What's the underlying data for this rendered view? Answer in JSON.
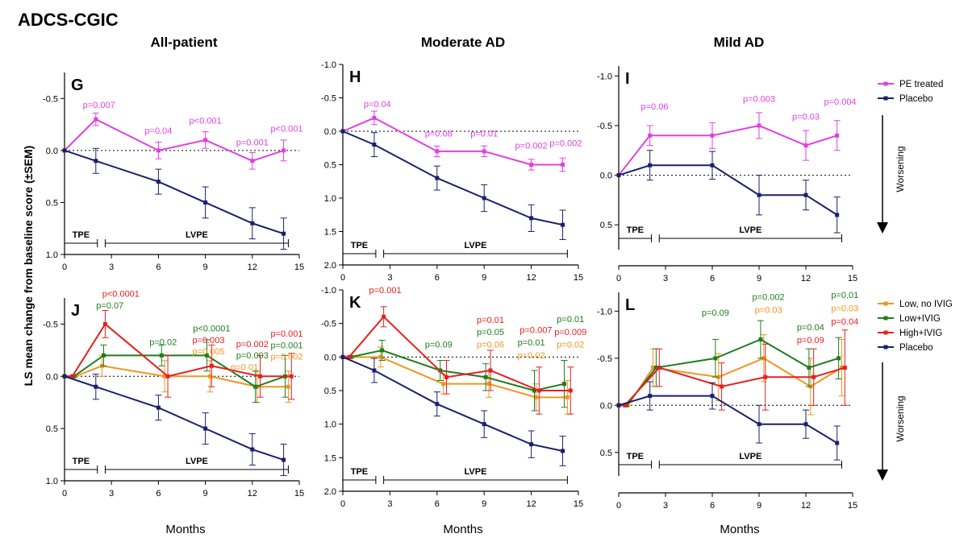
{
  "figure": {
    "title": "ADCS-CGIC",
    "ylabel": "LS mean change from baseline score (±SEM)",
    "xlabel": "Months",
    "col_titles": [
      "All-patient",
      "Moderate AD",
      "Mild AD"
    ],
    "worsening": "Worsening"
  },
  "colors": {
    "pe": "#e040e0",
    "placebo": "#1a1f6e",
    "low_no_ivig": "#f0961e",
    "low_ivig": "#1e7d1e",
    "high_ivig": "#e62020"
  },
  "legends": {
    "top": [
      {
        "label": "PE treated",
        "color": "#e040e0"
      },
      {
        "label": "Placebo",
        "color": "#1a1f6e"
      }
    ],
    "bottom": [
      {
        "label": "Low, no IVIG",
        "color": "#f0961e"
      },
      {
        "label": "Low+IVIG",
        "color": "#1e7d1e"
      },
      {
        "label": "High+IVIG",
        "color": "#e62020"
      },
      {
        "label": "Placebo",
        "color": "#1a1f6e"
      }
    ]
  },
  "chart_data": [
    {
      "panel": "G",
      "type": "line",
      "ylim": [
        1.0,
        -0.75
      ],
      "yticks": [
        -0.5,
        0.0,
        0.5,
        1.0
      ],
      "xlim": [
        0,
        15
      ],
      "xticks": [
        0,
        3,
        6,
        9,
        12,
        15
      ],
      "phases": [
        {
          "label": "TPE",
          "from": 0,
          "to": 2.1
        },
        {
          "label": "LVPE",
          "from": 2.6,
          "to": 14.3
        }
      ],
      "series": [
        {
          "name": "PE treated",
          "color": "#e040e0",
          "x": [
            0,
            2,
            6,
            9,
            12,
            14
          ],
          "y": [
            0,
            -0.3,
            0,
            -0.1,
            0.1,
            0
          ],
          "err": [
            0,
            0.06,
            0.08,
            0.08,
            0.08,
            0.1
          ]
        },
        {
          "name": "Placebo",
          "color": "#1a1f6e",
          "x": [
            0,
            2,
            6,
            9,
            12,
            14
          ],
          "y": [
            0,
            0.1,
            0.3,
            0.5,
            0.7,
            0.8
          ],
          "err": [
            0,
            0.12,
            0.12,
            0.15,
            0.15,
            0.15
          ]
        }
      ],
      "annotations": [
        {
          "text": "p=0.007",
          "x": 2.2,
          "y": -0.41,
          "color": "#e040e0"
        },
        {
          "text": "p=0.04",
          "x": 6.0,
          "y": -0.16,
          "color": "#e040e0"
        },
        {
          "text": "p<0.001",
          "x": 9.0,
          "y": -0.26,
          "color": "#e040e0"
        },
        {
          "text": "p=0.001",
          "x": 12.0,
          "y": -0.05,
          "color": "#e040e0"
        },
        {
          "text": "p<0.001",
          "x": 14.2,
          "y": -0.18,
          "color": "#e040e0"
        }
      ]
    },
    {
      "panel": "H",
      "type": "line",
      "ylim": [
        2.0,
        -1.0
      ],
      "yticks": [
        -1.0,
        -0.5,
        0.0,
        0.5,
        1.0,
        1.5,
        2.0
      ],
      "xlim": [
        0,
        15
      ],
      "xticks": [
        0,
        3,
        6,
        9,
        12,
        15
      ],
      "phases": [
        {
          "label": "TPE",
          "from": 0,
          "to": 2.1
        },
        {
          "label": "LVPE",
          "from": 2.6,
          "to": 14.3
        }
      ],
      "series": [
        {
          "name": "PE treated",
          "color": "#e040e0",
          "x": [
            0,
            2,
            6,
            9,
            12,
            14
          ],
          "y": [
            0,
            -0.2,
            0.3,
            0.3,
            0.5,
            0.5
          ],
          "err": [
            0,
            0.1,
            0.08,
            0.08,
            0.08,
            0.1
          ]
        },
        {
          "name": "Placebo",
          "color": "#1a1f6e",
          "x": [
            0,
            2,
            6,
            9,
            12,
            14
          ],
          "y": [
            0,
            0.2,
            0.7,
            1.0,
            1.3,
            1.4
          ],
          "err": [
            0,
            0.18,
            0.18,
            0.2,
            0.2,
            0.22
          ]
        }
      ],
      "annotations": [
        {
          "text": "p=0.04",
          "x": 2.2,
          "y": -0.36,
          "color": "#e040e0"
        },
        {
          "text": "p=0.08",
          "x": 6.1,
          "y": 0.08,
          "color": "#e040e0"
        },
        {
          "text": "p=0.01",
          "x": 9.0,
          "y": 0.08,
          "color": "#e040e0"
        },
        {
          "text": "p=0.002",
          "x": 12.0,
          "y": 0.26,
          "color": "#e040e0"
        },
        {
          "text": "p=0.002",
          "x": 14.2,
          "y": 0.22,
          "color": "#e040e0"
        }
      ]
    },
    {
      "panel": "I",
      "type": "line",
      "ylim": [
        0.75,
        -1.1
      ],
      "yticks": [
        -1.0,
        -0.5,
        0.0,
        0.5
      ],
      "xlim": [
        0,
        15
      ],
      "xticks": [
        0,
        3,
        6,
        9,
        12,
        15
      ],
      "phases": [
        {
          "label": "TPE",
          "from": 0,
          "to": 2.1
        },
        {
          "label": "LVPE",
          "from": 2.6,
          "to": 14.3
        }
      ],
      "series": [
        {
          "name": "PE treated",
          "color": "#e040e0",
          "x": [
            0,
            2,
            6,
            9,
            12,
            14
          ],
          "y": [
            0,
            -0.4,
            -0.4,
            -0.5,
            -0.3,
            -0.4
          ],
          "err": [
            0,
            0.1,
            0.13,
            0.13,
            0.15,
            0.15
          ]
        },
        {
          "name": "Placebo",
          "color": "#1a1f6e",
          "x": [
            0,
            2,
            6,
            9,
            12,
            14
          ],
          "y": [
            0,
            -0.1,
            -0.1,
            0.2,
            0.2,
            0.4
          ],
          "err": [
            0,
            0.15,
            0.14,
            0.2,
            0.15,
            0.18
          ]
        }
      ],
      "annotations": [
        {
          "text": "p=0.06",
          "x": 2.3,
          "y": -0.66,
          "color": "#e040e0"
        },
        {
          "text": "p=0.003",
          "x": 9.0,
          "y": -0.74,
          "color": "#e040e0"
        },
        {
          "text": "p=0.03",
          "x": 12.0,
          "y": -0.56,
          "color": "#e040e0"
        },
        {
          "text": "p=0.004",
          "x": 14.2,
          "y": -0.71,
          "color": "#e040e0"
        }
      ]
    },
    {
      "panel": "J",
      "type": "line",
      "ylim": [
        1.0,
        -0.75
      ],
      "yticks": [
        -0.5,
        0.0,
        0.5,
        1.0
      ],
      "xlim": [
        0,
        15
      ],
      "xticks": [
        0,
        3,
        6,
        9,
        12,
        15
      ],
      "phases": [
        {
          "label": "TPE",
          "from": 0,
          "to": 2.1
        },
        {
          "label": "LVPE",
          "from": 2.6,
          "to": 14.3
        }
      ],
      "series": [
        {
          "name": "Low, no IVIG",
          "color": "#f0961e",
          "x": [
            0,
            0.7,
            2.4,
            6.4,
            9.3,
            12.3,
            14.3
          ],
          "y": [
            0,
            0,
            -0.1,
            0,
            0,
            0.1,
            0.1
          ],
          "err": [
            0,
            0,
            0.1,
            0.15,
            0.15,
            0.15,
            0.15
          ]
        },
        {
          "name": "Low+IVIG",
          "color": "#1e7d1e",
          "x": [
            0,
            0.6,
            2.5,
            6.2,
            9.1,
            12.2,
            14.1
          ],
          "y": [
            0,
            0,
            -0.2,
            -0.2,
            -0.2,
            0.1,
            0
          ],
          "err": [
            0,
            0,
            0.1,
            0.1,
            0.15,
            0.15,
            0.2
          ]
        },
        {
          "name": "High+IVIG",
          "color": "#e62020",
          "x": [
            0,
            0.5,
            2.6,
            6.6,
            9.4,
            12.5,
            14.5
          ],
          "y": [
            0,
            0,
            -0.5,
            0,
            -0.1,
            0,
            0
          ],
          "err": [
            0,
            0,
            0.13,
            0.2,
            0.2,
            0.2,
            0.22
          ]
        },
        {
          "name": "Placebo",
          "color": "#1a1f6e",
          "x": [
            0,
            2,
            6,
            9,
            12,
            14
          ],
          "y": [
            0,
            0.1,
            0.3,
            0.5,
            0.7,
            0.8
          ],
          "err": [
            0,
            0.12,
            0.12,
            0.15,
            0.15,
            0.15
          ]
        }
      ],
      "annotations": [
        {
          "text": "p<0.0001",
          "x": 3.6,
          "y": -0.76,
          "color": "#e62020"
        },
        {
          "text": "p=0.07",
          "x": 2.9,
          "y": -0.65,
          "color": "#1e7d1e"
        },
        {
          "text": "p=0.02",
          "x": 6.3,
          "y": -0.3,
          "color": "#1e7d1e"
        },
        {
          "text": "p<0.0001",
          "x": 9.4,
          "y": -0.43,
          "color": "#1e7d1e"
        },
        {
          "text": "p=0.003",
          "x": 9.2,
          "y": -0.32,
          "color": "#e62020"
        },
        {
          "text": "p=0.005",
          "x": 9.2,
          "y": -0.21,
          "color": "#f0961e"
        },
        {
          "text": "p=0.002",
          "x": 12.0,
          "y": -0.28,
          "color": "#e62020"
        },
        {
          "text": "p=0.003",
          "x": 12.0,
          "y": -0.17,
          "color": "#1e7d1e"
        },
        {
          "text": "p=0.01",
          "x": 11.5,
          "y": -0.06,
          "color": "#f0961e"
        },
        {
          "text": "p=0.001",
          "x": 14.2,
          "y": -0.38,
          "color": "#e62020"
        },
        {
          "text": "p=0.001",
          "x": 14.2,
          "y": -0.27,
          "color": "#1e7d1e"
        },
        {
          "text": "p=0.002",
          "x": 14.2,
          "y": -0.16,
          "color": "#f0961e"
        }
      ]
    },
    {
      "panel": "K",
      "type": "line",
      "ylim": [
        2.0,
        -1.0
      ],
      "yticks": [
        -1.0,
        -0.5,
        0.0,
        0.5,
        1.0,
        1.5,
        2.0
      ],
      "xlim": [
        0,
        15
      ],
      "xticks": [
        0,
        3,
        6,
        9,
        12,
        15
      ],
      "phases": [
        {
          "label": "TPE",
          "from": 0,
          "to": 2.1
        },
        {
          "label": "LVPE",
          "from": 2.6,
          "to": 14.3
        }
      ],
      "series": [
        {
          "name": "Low, no IVIG",
          "color": "#f0961e",
          "x": [
            0,
            0.6,
            2.4,
            6.4,
            9.3,
            12.3,
            14.3
          ],
          "y": [
            0,
            0,
            0,
            0.4,
            0.4,
            0.6,
            0.6
          ],
          "err": [
            0,
            0,
            0.15,
            0.15,
            0.2,
            0.2,
            0.25
          ]
        },
        {
          "name": "Low+IVIG",
          "color": "#1e7d1e",
          "x": [
            0,
            0.5,
            2.5,
            6.2,
            9.1,
            12.2,
            14.1
          ],
          "y": [
            0,
            0,
            -0.1,
            0.2,
            0.3,
            0.5,
            0.4
          ],
          "err": [
            0,
            0,
            0.15,
            0.15,
            0.2,
            0.3,
            0.35
          ]
        },
        {
          "name": "High+IVIG",
          "color": "#e62020",
          "x": [
            0,
            0.4,
            2.6,
            6.6,
            9.4,
            12.5,
            14.5
          ],
          "y": [
            0,
            0,
            -0.6,
            0.3,
            0.2,
            0.5,
            0.5
          ],
          "err": [
            0,
            0,
            0.15,
            0.25,
            0.3,
            0.35,
            0.35
          ]
        },
        {
          "name": "Placebo",
          "color": "#1a1f6e",
          "x": [
            0,
            2,
            6,
            9,
            12,
            14
          ],
          "y": [
            0,
            0.2,
            0.7,
            1.0,
            1.3,
            1.4
          ],
          "err": [
            0,
            0.18,
            0.18,
            0.2,
            0.2,
            0.22
          ]
        }
      ],
      "annotations": [
        {
          "text": "p=0.001",
          "x": 2.7,
          "y": -0.95,
          "color": "#e62020"
        },
        {
          "text": "p=0.09",
          "x": 6.1,
          "y": -0.14,
          "color": "#1e7d1e"
        },
        {
          "text": "p=0.01",
          "x": 9.4,
          "y": -0.51,
          "color": "#e62020"
        },
        {
          "text": "p=0.05",
          "x": 9.4,
          "y": -0.33,
          "color": "#1e7d1e"
        },
        {
          "text": "p=0.06",
          "x": 9.4,
          "y": -0.14,
          "color": "#f0961e"
        },
        {
          "text": "p=0.007",
          "x": 12.3,
          "y": -0.36,
          "color": "#e62020"
        },
        {
          "text": "p=0.01",
          "x": 12.0,
          "y": -0.17,
          "color": "#1e7d1e"
        },
        {
          "text": "p=0.02",
          "x": 12.0,
          "y": 0.02,
          "color": "#f0961e"
        },
        {
          "text": "p=0.01",
          "x": 14.5,
          "y": -0.52,
          "color": "#1e7d1e"
        },
        {
          "text": "p=0.009",
          "x": 14.5,
          "y": -0.33,
          "color": "#e62020"
        },
        {
          "text": "p=0.02",
          "x": 14.5,
          "y": -0.14,
          "color": "#f0961e"
        }
      ]
    },
    {
      "panel": "L",
      "type": "line",
      "ylim": [
        0.75,
        -1.2
      ],
      "yticks": [
        -1.0,
        -0.5,
        0.0,
        0.5
      ],
      "xlim": [
        0,
        15
      ],
      "xticks": [
        0,
        3,
        6,
        9,
        12,
        15
      ],
      "phases": [
        {
          "label": "TPE",
          "from": 0,
          "to": 2.1
        },
        {
          "label": "LVPE",
          "from": 2.6,
          "to": 14.3
        }
      ],
      "series": [
        {
          "name": "Low, no IVIG",
          "color": "#f0961e",
          "x": [
            0,
            0.6,
            2.2,
            6.4,
            9.3,
            12.3,
            14.3
          ],
          "y": [
            0,
            0,
            -0.4,
            -0.3,
            -0.5,
            -0.2,
            -0.4
          ],
          "err": [
            0,
            0,
            0.2,
            0.25,
            0.25,
            0.3,
            0.3
          ]
        },
        {
          "name": "Low+IVIG",
          "color": "#1e7d1e",
          "x": [
            0,
            0.5,
            2.4,
            6.2,
            9.1,
            12.2,
            14.1
          ],
          "y": [
            0,
            0,
            -0.4,
            -0.5,
            -0.7,
            -0.4,
            -0.5
          ],
          "err": [
            0,
            0,
            0.2,
            0.2,
            0.2,
            0.2,
            0.22
          ]
        },
        {
          "name": "High+IVIG",
          "color": "#e62020",
          "x": [
            0,
            0.4,
            2.6,
            6.6,
            9.4,
            12.5,
            14.5
          ],
          "y": [
            0,
            0,
            -0.4,
            -0.2,
            -0.3,
            -0.3,
            -0.4
          ],
          "err": [
            0,
            0,
            0.2,
            0.25,
            0.35,
            0.3,
            0.4
          ]
        },
        {
          "name": "Placebo",
          "color": "#1a1f6e",
          "x": [
            0,
            2,
            6,
            9,
            12,
            14
          ],
          "y": [
            0,
            -0.1,
            -0.1,
            0.2,
            0.2,
            0.4
          ],
          "err": [
            0,
            0.15,
            0.14,
            0.2,
            0.15,
            0.18
          ]
        }
      ],
      "annotations": [
        {
          "text": "p=0.09",
          "x": 6.2,
          "y": -0.95,
          "color": "#1e7d1e"
        },
        {
          "text": "p=0.002",
          "x": 9.6,
          "y": -1.12,
          "color": "#1e7d1e"
        },
        {
          "text": "p=0.03",
          "x": 9.6,
          "y": -0.98,
          "color": "#f0961e"
        },
        {
          "text": "p=0.04",
          "x": 12.3,
          "y": -0.8,
          "color": "#1e7d1e"
        },
        {
          "text": "p=0.09",
          "x": 12.3,
          "y": -0.66,
          "color": "#e62020"
        },
        {
          "text": "p=0.01",
          "x": 14.5,
          "y": -1.14,
          "color": "#1e7d1e"
        },
        {
          "text": "p=0.03",
          "x": 14.5,
          "y": -1.0,
          "color": "#f0961e"
        },
        {
          "text": "p=0.04",
          "x": 14.5,
          "y": -0.86,
          "color": "#e62020"
        }
      ]
    }
  ]
}
